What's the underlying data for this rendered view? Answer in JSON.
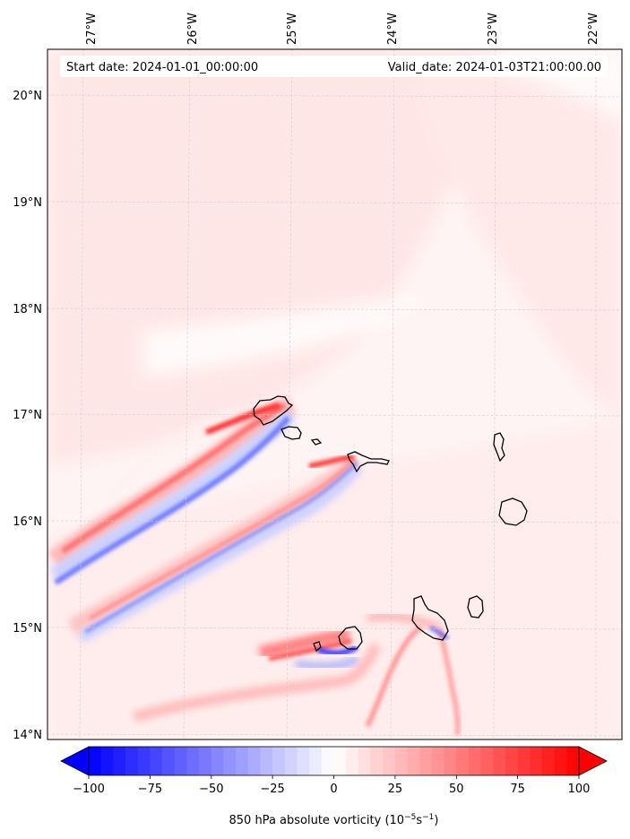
{
  "map": {
    "lon_ticks": [
      "27°W",
      "26°W",
      "25°W",
      "24°W",
      "23°W",
      "22°W"
    ],
    "lat_ticks": [
      "20°N",
      "19°N",
      "18°N",
      "17°N",
      "16°N",
      "15°N",
      "14°N"
    ],
    "start_date": "Start date: 2024-01-01_00:00:00",
    "valid_date": "Valid_date: 2024-01-03T21:00:00.00",
    "gridlines": true
  },
  "colorbar": {
    "tick_labels": [
      "−100",
      "−75",
      "−50",
      "−25",
      "0",
      "25",
      "50",
      "75",
      "100"
    ],
    "label": "850 hPa absolute vorticity (10",
    "label_exp1": "−5",
    "label_mid": "s",
    "label_exp2": "−1",
    "label_end": ")",
    "colormap": "bwr",
    "min": -100,
    "max": 100,
    "extend": "both"
  }
}
